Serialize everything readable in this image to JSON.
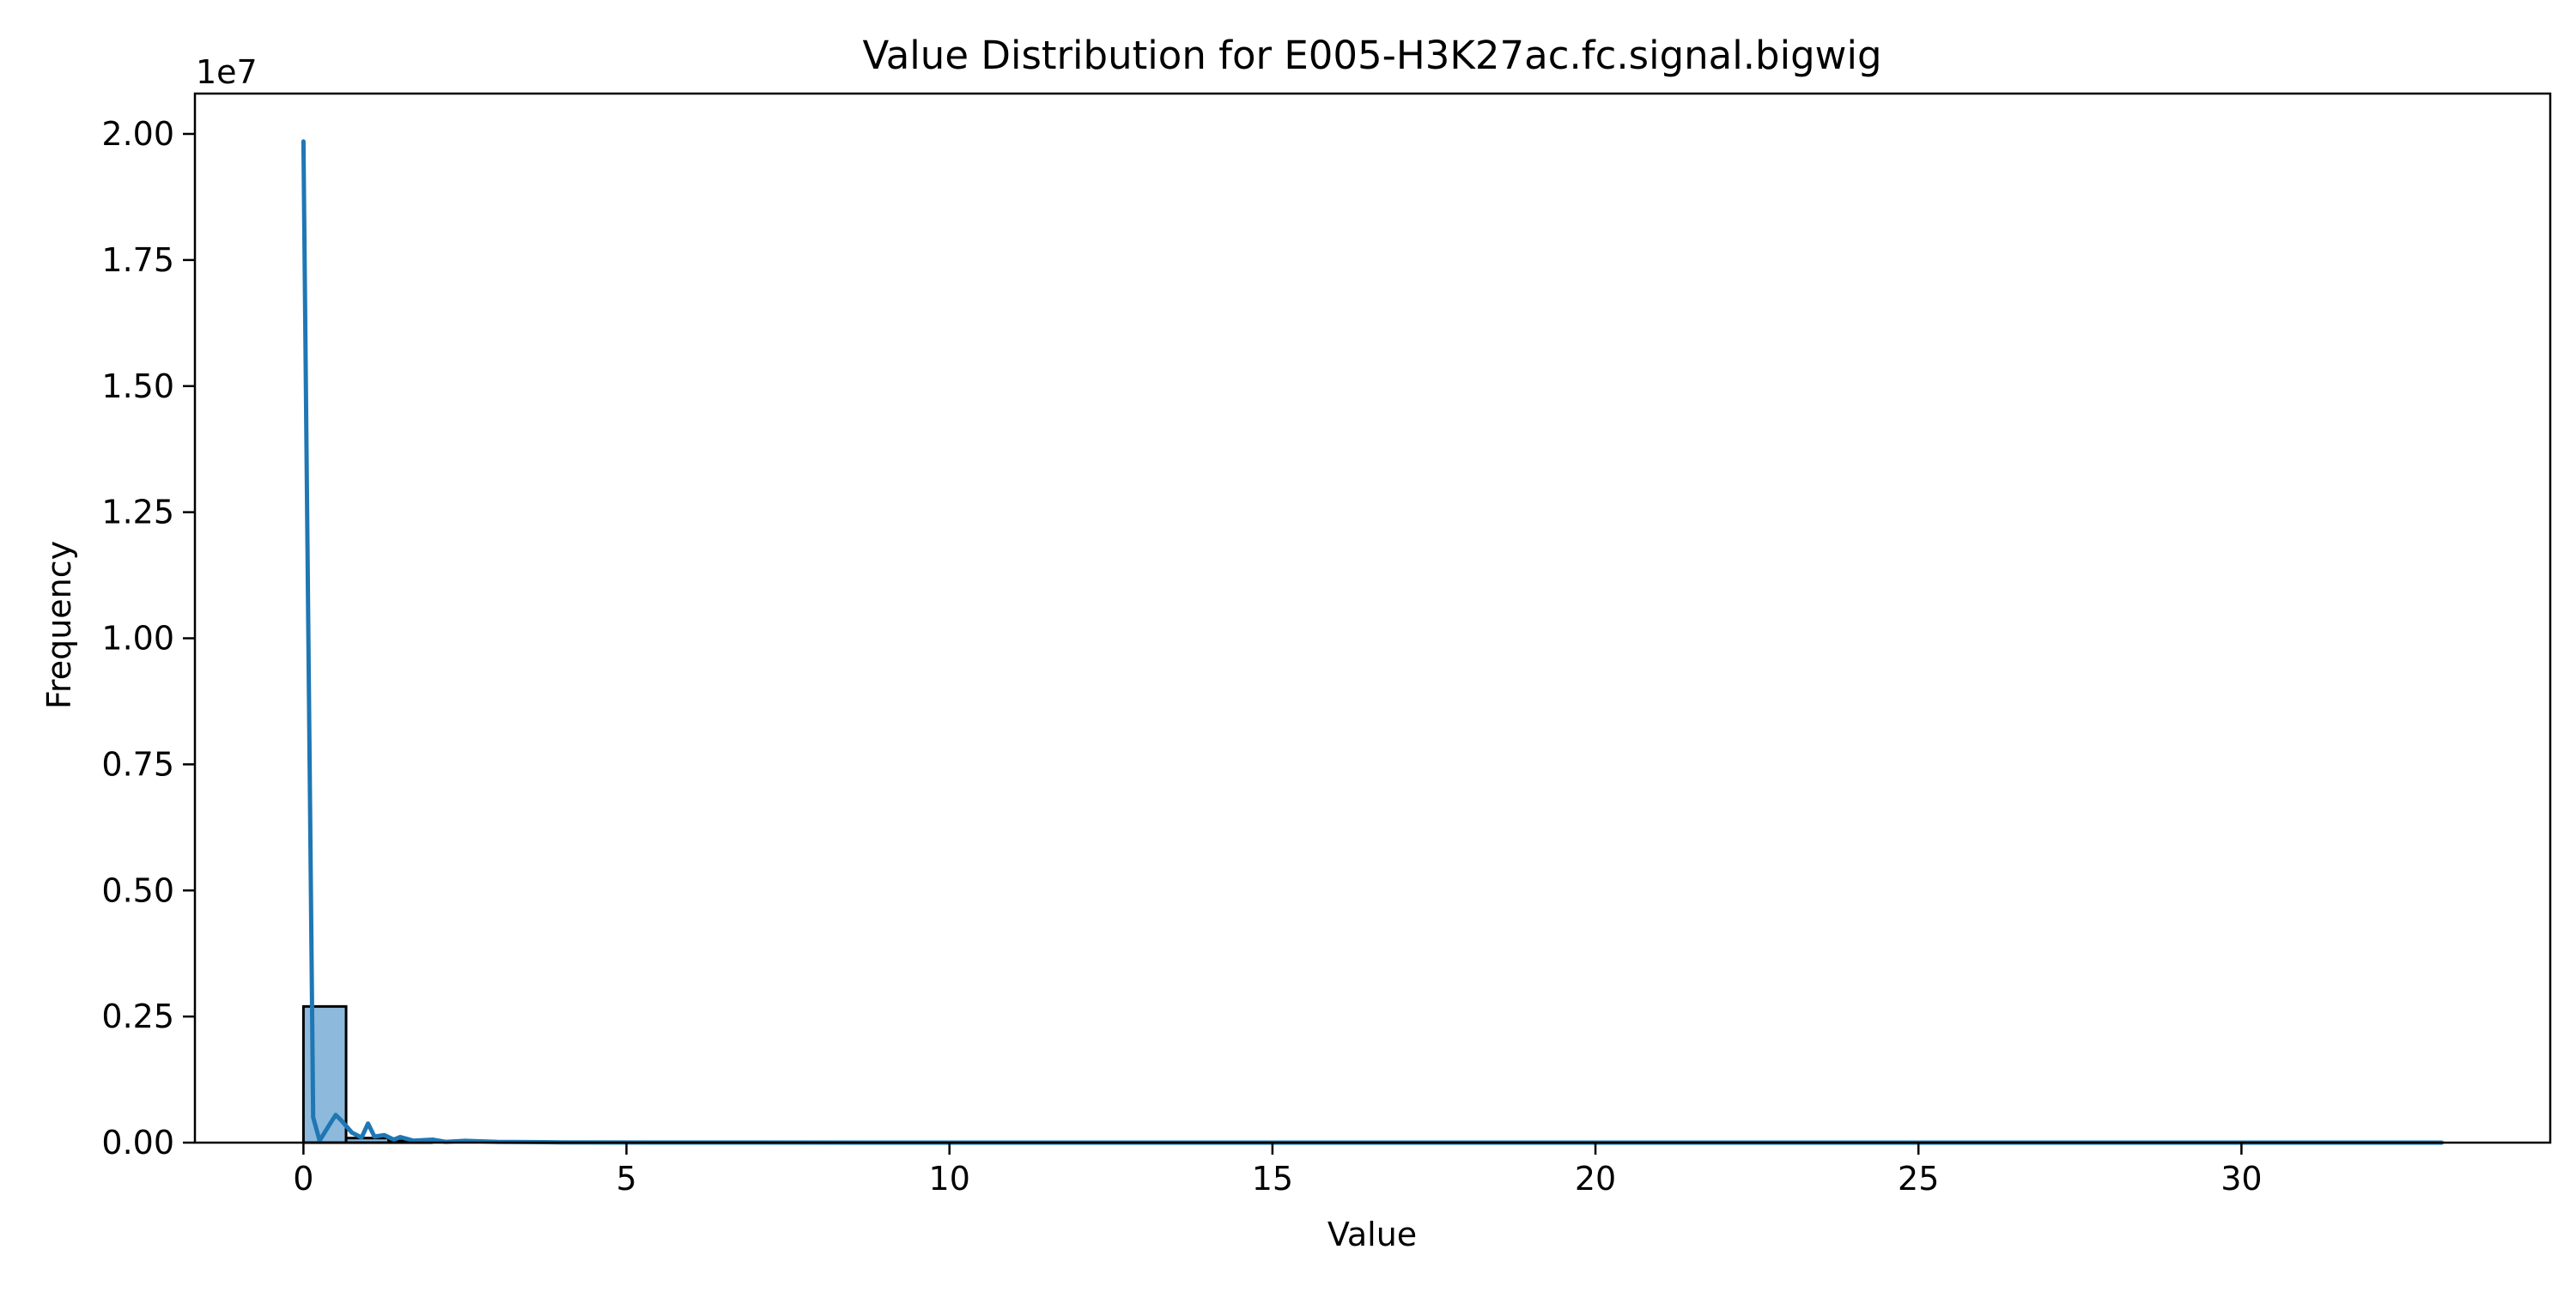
{
  "chart_data": {
    "type": "bar",
    "title": "Value Distribution for E005-H3K27ac.fc.signal.bigwig",
    "xlabel": "Value",
    "ylabel": "Frequency",
    "y_scale_label": "1e7",
    "xlim": [
      -1.68,
      34.78
    ],
    "ylim": [
      0,
      20800000
    ],
    "grid": false,
    "x_ticks": [
      0,
      5,
      10,
      15,
      20,
      25,
      30
    ],
    "x_tick_labels": [
      "0",
      "5",
      "10",
      "15",
      "20",
      "25",
      "30"
    ],
    "y_ticks": [
      0,
      2500000,
      5000000,
      7500000,
      10000000,
      12500000,
      15000000,
      17500000,
      20000000
    ],
    "y_tick_labels": [
      "0.00",
      "0.25",
      "0.50",
      "0.75",
      "1.00",
      "1.25",
      "1.50",
      "1.75",
      "2.00"
    ],
    "bin_width": 0.66,
    "bins": [
      {
        "x0": 0.0,
        "x1": 0.66,
        "value": 2700000
      },
      {
        "x0": 0.66,
        "x1": 1.32,
        "value": 90000
      },
      {
        "x0": 1.32,
        "x1": 1.98,
        "value": 35000
      }
    ],
    "kde_line": {
      "x": [
        0.0,
        0.15,
        0.25,
        0.4,
        0.5,
        0.6,
        0.75,
        0.9,
        1.0,
        1.1,
        1.25,
        1.4,
        1.5,
        1.7,
        2.0,
        2.2,
        2.5,
        3.0,
        4.0,
        6.0,
        10.0,
        15.0,
        20.0,
        25.0,
        30.0,
        33.1
      ],
      "y": [
        19850000,
        500000,
        40000,
        350000,
        550000,
        420000,
        200000,
        100000,
        380000,
        120000,
        150000,
        60000,
        110000,
        40000,
        60000,
        15000,
        35000,
        15000,
        5000,
        1000,
        0,
        0,
        0,
        0,
        0,
        0
      ]
    },
    "colors": {
      "bar_fill": "#8dbadc",
      "bar_edge": "#000000",
      "line": "#1f77b4"
    }
  }
}
